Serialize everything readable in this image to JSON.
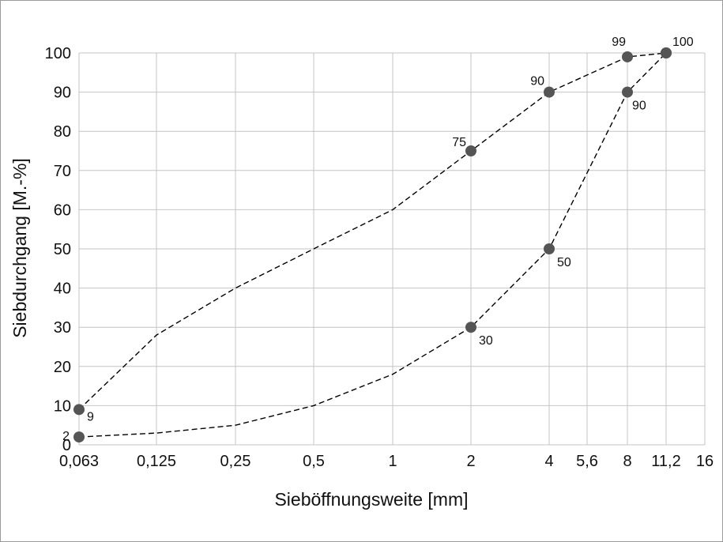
{
  "chart_data": {
    "type": "line",
    "title": "",
    "xlabel": "Sieböffnungsweite [mm]",
    "ylabel": "Siebdurchgang [M.-%]",
    "x_scale": "log2",
    "x_ticks": [
      "0,063",
      "0,125",
      "0,25",
      "0,5",
      "1",
      "2",
      "4",
      "5,6",
      "8",
      "11,2",
      "16"
    ],
    "x_tick_values": [
      0.063,
      0.125,
      0.25,
      0.5,
      1,
      2,
      4,
      5.6,
      8,
      11.2,
      16
    ],
    "y_ticks": [
      "0",
      "10",
      "20",
      "30",
      "40",
      "50",
      "60",
      "70",
      "80",
      "90",
      "100"
    ],
    "ylim": [
      0,
      100
    ],
    "grid": true,
    "line_style": "dashed",
    "line_color": "#000000",
    "marker_color": "#555555",
    "series": [
      {
        "points": [
          {
            "x": 0.063,
            "y": 9,
            "marker": true,
            "label": "9"
          },
          {
            "x": 0.125,
            "y": 28,
            "marker": false
          },
          {
            "x": 0.25,
            "y": 40,
            "marker": false
          },
          {
            "x": 0.5,
            "y": 50,
            "marker": false
          },
          {
            "x": 1,
            "y": 60,
            "marker": false
          },
          {
            "x": 2,
            "y": 75,
            "marker": true,
            "label": "75"
          },
          {
            "x": 4,
            "y": 90,
            "marker": true,
            "label": "90"
          },
          {
            "x": 8,
            "y": 99,
            "marker": true,
            "label": "99"
          },
          {
            "x": 11.2,
            "y": 100,
            "marker": true,
            "label": "100"
          }
        ]
      },
      {
        "points": [
          {
            "x": 0.063,
            "y": 2,
            "marker": true,
            "label": "2"
          },
          {
            "x": 0.125,
            "y": 3,
            "marker": false
          },
          {
            "x": 0.25,
            "y": 5,
            "marker": false
          },
          {
            "x": 0.5,
            "y": 10,
            "marker": false
          },
          {
            "x": 1,
            "y": 18,
            "marker": false
          },
          {
            "x": 2,
            "y": 30,
            "marker": true,
            "label": "30"
          },
          {
            "x": 4,
            "y": 50,
            "marker": true,
            "label": "50"
          },
          {
            "x": 8,
            "y": 90,
            "marker": true,
            "label": "90"
          },
          {
            "x": 11.2,
            "y": 100,
            "marker": true,
            "label": "100"
          }
        ]
      }
    ]
  }
}
